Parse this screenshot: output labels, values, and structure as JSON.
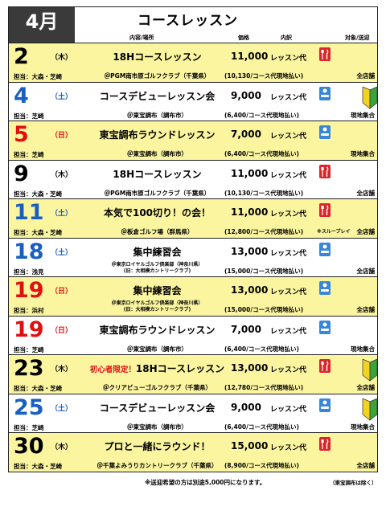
{
  "header": {
    "month": "4月",
    "title": "コースレッスン",
    "col_content": "内容/場所",
    "col_price": "価格",
    "col_breakdown": "内訳",
    "col_target": "対象/送迎"
  },
  "colors": {
    "yellow": "#fbf5a0",
    "red_day": "#e01010",
    "blue_day": "#1a5fbf",
    "black_day": "#000000"
  },
  "rows": [
    {
      "day": "2",
      "dow": "（木）",
      "day_color": "black",
      "yellow": true,
      "prefix": "",
      "event": "18Hコースレッスン",
      "price": "11,000",
      "kind": "レッスン代",
      "icon": "red",
      "leaf": false,
      "staff": "担当：大森・芝崎",
      "venue": "＠PGM南市原ゴルフクラブ（千葉県）",
      "venue2": "",
      "sub": "(10,130/コース代現地払い)",
      "note": "",
      "target": "全店舗"
    },
    {
      "day": "4",
      "dow": "（土）",
      "day_color": "blue",
      "yellow": false,
      "prefix": "",
      "event": "コースデビューレッスン会",
      "price": "9,000",
      "kind": "レッスン代",
      "icon": "blue",
      "leaf": true,
      "staff": "担当：芝崎",
      "venue": "＠東宝調布（調布市）",
      "venue2": "",
      "sub": "(6,400/コース代現地払い)",
      "note": "",
      "target": "現地集合"
    },
    {
      "day": "5",
      "dow": "（日）",
      "day_color": "red",
      "yellow": true,
      "prefix": "",
      "event": "東宝調布ラウンドレッスン",
      "price": "7,000",
      "kind": "レッスン代",
      "icon": "blue",
      "leaf": false,
      "staff": "担当：芝崎",
      "venue": "＠東宝調布（調布市）",
      "venue2": "",
      "sub": "(6,400/コース代現地払い)",
      "note": "",
      "target": "現地集合"
    },
    {
      "day": "9",
      "dow": "（木）",
      "day_color": "black",
      "yellow": false,
      "prefix": "",
      "event": "18Hコースレッスン",
      "price": "11,000",
      "kind": "レッスン代",
      "icon": "red",
      "leaf": false,
      "staff": "担当：大森・芝崎",
      "venue": "＠PGM南市原ゴルフクラブ（千葉県）",
      "venue2": "",
      "sub": "(10,130/コース代現地払い)",
      "note": "",
      "target": "全店舗"
    },
    {
      "day": "11",
      "dow": "（土）",
      "day_color": "blue",
      "yellow": true,
      "prefix": "",
      "event": "本気で100切り！の会！",
      "price": "11,000",
      "kind": "レッスン代",
      "icon": "red",
      "leaf": false,
      "staff": "担当：大森・芝崎",
      "venue": "＠板倉ゴルフ場（群馬県）",
      "venue2": "",
      "sub": "(12,800/コース代現地払い)",
      "note": "※スループレイ",
      "target": "全店舗"
    },
    {
      "day": "18",
      "dow": "（土）",
      "day_color": "blue",
      "yellow": false,
      "prefix": "",
      "event": "集中練習会",
      "price": "13,000",
      "kind": "レッスン代",
      "icon": "blue",
      "leaf": false,
      "staff": "担当：浅見",
      "venue": "＠東京ロイヤルゴルフ倶楽部（神奈川県）",
      "venue2": "(旧：大相模カントリークラブ)",
      "sub": "(15,000/コース代現地払い)",
      "note": "",
      "target": "全店舗"
    },
    {
      "day": "19",
      "dow": "（日）",
      "day_color": "red",
      "yellow": true,
      "prefix": "",
      "event": "集中練習会",
      "price": "13,000",
      "kind": "レッスン代",
      "icon": "blue",
      "leaf": false,
      "staff": "担当：浜村",
      "venue": "＠東京ロイヤルゴルフ倶楽部（神奈川県）",
      "venue2": "(旧：大相模カントリークラブ)",
      "sub": "(15,000/コース代現地払い)",
      "note": "",
      "target": "全店舗"
    },
    {
      "day": "19",
      "dow": "（日）",
      "day_color": "red",
      "yellow": false,
      "prefix": "",
      "event": "東宝調布ラウンドレッスン",
      "price": "7,000",
      "kind": "レッスン代",
      "icon": "blue",
      "leaf": false,
      "staff": "担当：芝崎",
      "venue": "＠東宝調布（調布市）",
      "venue2": "",
      "sub": "(6,400/コース代現地払い)",
      "note": "",
      "target": "現地集合"
    },
    {
      "day": "23",
      "dow": "（木）",
      "day_color": "black",
      "yellow": true,
      "prefix": "初心者限定！",
      "event": "18Hコースレッスン",
      "price": "13,000",
      "kind": "レッスン代",
      "icon": "red",
      "leaf": true,
      "staff": "担当：大森・芝崎",
      "venue": "＠クリアビューゴルフクラブ（千葉県）",
      "venue2": "",
      "sub": "(12,780/コース代現地払い)",
      "note": "",
      "target": "全店舗"
    },
    {
      "day": "25",
      "dow": "（土）",
      "day_color": "blue",
      "yellow": false,
      "prefix": "",
      "event": "コースデビューレッスン会",
      "price": "9,000",
      "kind": "レッスン代",
      "icon": "blue",
      "leaf": true,
      "staff": "担当：芝崎",
      "venue": "＠東宝調布（調布市）",
      "venue2": "",
      "sub": "(6,400/コース代現地払い)",
      "note": "",
      "target": "現地集合"
    },
    {
      "day": "30",
      "dow": "（木）",
      "day_color": "black",
      "yellow": true,
      "prefix": "",
      "event": "プロと一緒にラウンド！",
      "price": "15,000",
      "kind": "レッスン代",
      "icon": "red",
      "leaf": false,
      "staff": "担当：大森・芝崎",
      "venue": "＠千葉よみうりカントリークラブ（千葉県）",
      "venue2": "",
      "sub": "(8,900/コース代現地払い)",
      "note": "",
      "target": "全店舗"
    }
  ],
  "footer": {
    "note": "※送迎希望の方は別途5,000円になります。",
    "exception": "（東宝調布は除く）"
  }
}
